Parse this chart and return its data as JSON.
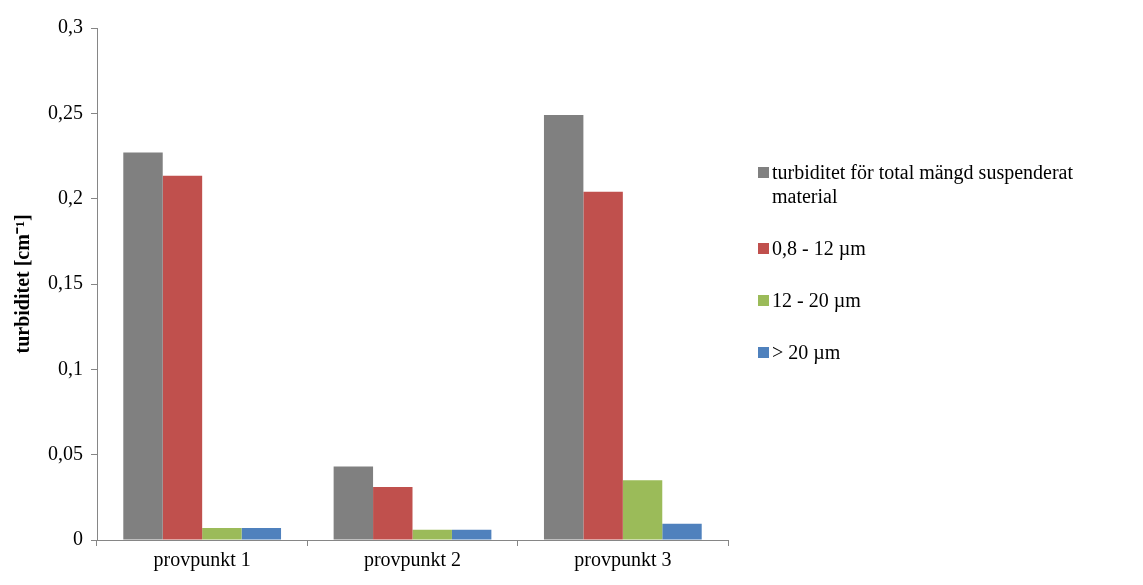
{
  "chart_data": {
    "type": "bar",
    "ylabel": "turbiditet [cm⁻¹]",
    "categories": [
      "provpunkt 1",
      "provpunkt 2",
      "provpunkt 3"
    ],
    "series": [
      {
        "name": "turbiditet för total mängd suspenderat material",
        "color": "#808080",
        "values": [
          0.227,
          0.043,
          0.249
        ]
      },
      {
        "name": "0,8 - 12 µm",
        "color": "#c0504d",
        "values": [
          0.2135,
          0.031,
          0.204
        ]
      },
      {
        "name": "12 - 20 µm",
        "color": "#9bbb59",
        "values": [
          0.007,
          0.006,
          0.035
        ]
      },
      {
        "name": "> 20 µm",
        "color": "#4f81bd",
        "values": [
          0.007,
          0.006,
          0.0095
        ]
      }
    ],
    "ylim": [
      0,
      0.3
    ],
    "yticks": [
      0,
      {
        "value": 0.05,
        "label": "0,05"
      },
      {
        "value": 0.1,
        "label": "0,1"
      },
      {
        "value": 0.15,
        "label": "0,15"
      },
      {
        "value": 0.2,
        "label": "0,2"
      },
      {
        "value": 0.25,
        "label": "0,25"
      },
      {
        "value": 0.3,
        "label": "0,3"
      }
    ],
    "grid": false,
    "legend": "right"
  }
}
